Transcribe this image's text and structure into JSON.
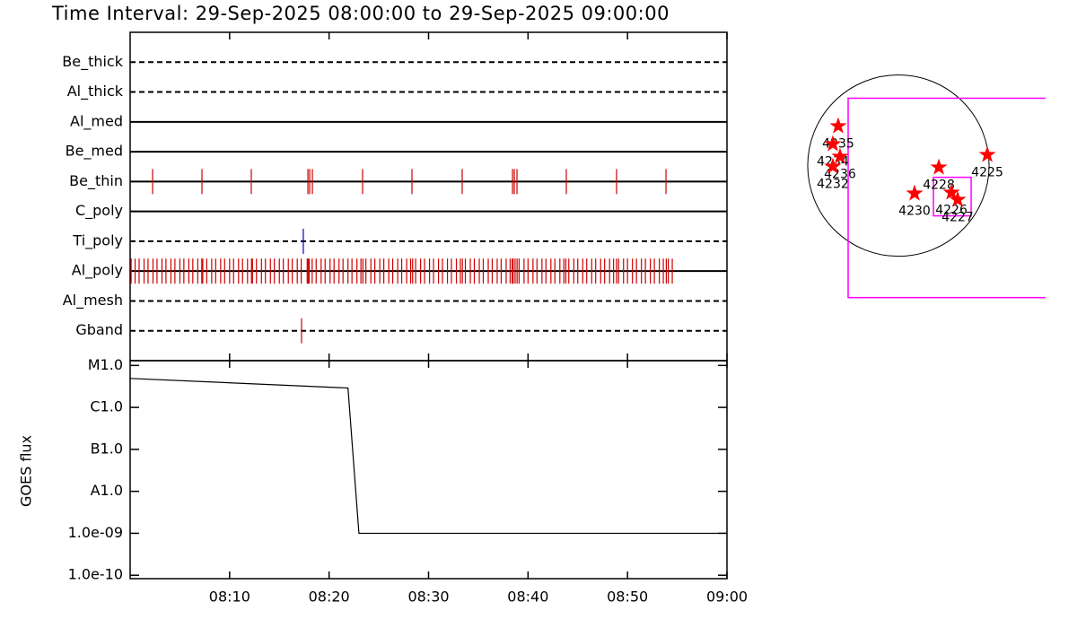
{
  "chart_data": [
    {
      "type": "event-raster",
      "title": "Time Interval: 29-Sep-2025 08:00:00 to 29-Sep-2025 09:00:00",
      "xlim": [
        0,
        60
      ],
      "xticks": [
        10,
        20,
        30,
        40,
        50,
        60
      ],
      "rows": [
        {
          "name": "Be_thick",
          "line": "dashed"
        },
        {
          "name": "Al_thick",
          "line": "dashed"
        },
        {
          "name": "Al_med",
          "line": "solid"
        },
        {
          "name": "Be_med",
          "line": "solid"
        },
        {
          "name": "Be_thin",
          "line": "solid",
          "color": "#cc0000",
          "events": [
            2.26,
            7.22,
            12.18,
            17.87,
            18.05,
            18.32,
            23.37,
            28.33,
            33.38,
            38.44,
            38.62,
            38.89,
            43.85,
            48.9,
            53.87
          ]
        },
        {
          "name": "C_poly",
          "line": "solid"
        },
        {
          "name": "Ti_poly",
          "line": "dashed",
          "color": "#0000cc",
          "events": [
            17.41
          ]
        },
        {
          "name": "Al_poly",
          "line": "solid",
          "color": "#cc0000",
          "events": [
            0.1,
            0.5,
            0.9,
            1.4,
            1.8,
            2.3,
            2.7,
            3.2,
            3.6,
            4.1,
            4.5,
            5.0,
            5.4,
            5.9,
            6.3,
            6.8,
            7.2,
            7.3,
            7.7,
            8.2,
            8.6,
            9.1,
            9.5,
            10.0,
            10.4,
            10.9,
            11.3,
            11.8,
            12.2,
            12.3,
            12.7,
            13.2,
            13.6,
            14.1,
            14.5,
            15.0,
            15.4,
            15.9,
            16.3,
            16.8,
            17.2,
            17.8,
            17.9,
            18.0,
            18.3,
            18.7,
            19.2,
            19.6,
            20.1,
            20.5,
            21.0,
            21.4,
            21.9,
            22.3,
            22.8,
            23.2,
            23.4,
            23.7,
            24.2,
            24.6,
            25.1,
            25.5,
            26.0,
            26.4,
            26.9,
            27.3,
            27.8,
            28.2,
            28.4,
            28.7,
            29.2,
            29.6,
            30.1,
            30.5,
            31.0,
            31.4,
            31.9,
            32.3,
            32.8,
            33.2,
            33.4,
            33.7,
            34.2,
            34.6,
            35.1,
            35.5,
            36.0,
            36.4,
            36.9,
            37.3,
            37.8,
            38.2,
            38.4,
            38.5,
            38.7,
            38.9,
            39.1,
            39.6,
            40.0,
            40.5,
            40.9,
            41.4,
            41.8,
            42.3,
            42.7,
            43.2,
            43.6,
            43.8,
            44.1,
            44.6,
            45.0,
            45.5,
            45.9,
            46.4,
            46.8,
            47.3,
            47.7,
            48.2,
            48.6,
            48.9,
            49.1,
            49.6,
            50.0,
            50.5,
            50.9,
            51.4,
            51.8,
            52.3,
            52.7,
            53.2,
            53.6,
            53.9,
            54.1,
            54.5
          ]
        },
        {
          "name": "Al_mesh",
          "line": "dashed"
        },
        {
          "name": "Gband",
          "line": "dashed",
          "color": "#cc0000",
          "events": [
            17.23
          ]
        }
      ]
    },
    {
      "type": "line",
      "ylabel": "GOES flux",
      "log_scale": true,
      "xlim": [
        0,
        60
      ],
      "xticks": [
        {
          "value": 10,
          "label": "08:10"
        },
        {
          "value": 20,
          "label": "08:20"
        },
        {
          "value": 30,
          "label": "08:30"
        },
        {
          "value": 40,
          "label": "08:40"
        },
        {
          "value": 50,
          "label": "08:50"
        },
        {
          "value": 60,
          "label": "09:00"
        }
      ],
      "ylim": [
        8.3e-11,
        1.3e-05
      ],
      "yticks": [
        {
          "value": 1e-05,
          "label": "M1.0"
        },
        {
          "value": 1e-06,
          "label": "C1.0"
        },
        {
          "value": 1e-07,
          "label": "B1.0"
        },
        {
          "value": 1e-08,
          "label": "A1.0"
        },
        {
          "value": 1e-09,
          "label": "1.0e-09"
        },
        {
          "value": 1e-10,
          "label": "1.0e-10"
        }
      ],
      "x": [
        0,
        21.9,
        23.0,
        60
      ],
      "values": [
        4.9e-06,
        2.9e-06,
        1e-09,
        1e-09
      ],
      "color": "#000000"
    },
    {
      "type": "solar-map",
      "sun_radius": 960,
      "xlim": [
        -1007,
        1558
      ],
      "ylim": [
        -1400,
        1050
      ],
      "box_color": "#ff00ff",
      "marker_color": "#ff0000",
      "boxes": [
        [
          -532,
          1700,
          -1397,
          713
        ],
        [
          371,
          770,
          -532,
          -124
        ]
      ],
      "regions": [
        {
          "name": "4235",
          "x": -637,
          "y": 418
        },
        {
          "name": "4234",
          "x": -694,
          "y": 228
        },
        {
          "name": "4236",
          "x": -618,
          "y": 95
        },
        {
          "name": "4232",
          "x": -694,
          "y": -10
        },
        {
          "name": "4225",
          "x": 941,
          "y": 114
        },
        {
          "name": "4228",
          "x": 428,
          "y": -19
        },
        {
          "name": "4230",
          "x": 171,
          "y": -295
        },
        {
          "name": "4226",
          "x": 561,
          "y": -285
        },
        {
          "name": "4227",
          "x": 627,
          "y": -361
        }
      ]
    }
  ]
}
